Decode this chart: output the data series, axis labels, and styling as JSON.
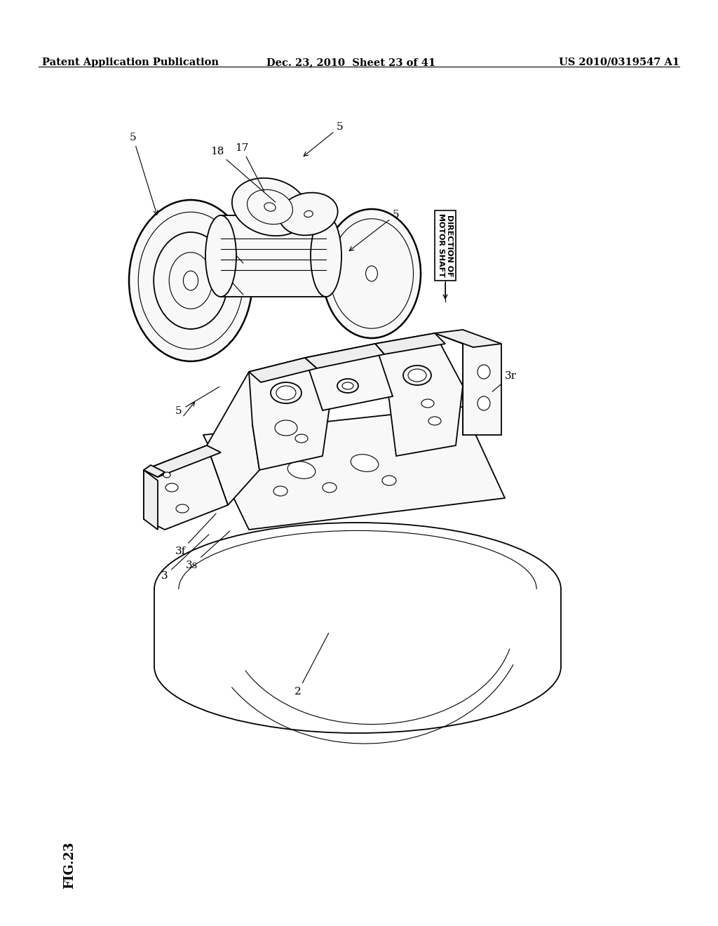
{
  "bg_color": "#ffffff",
  "header_left": "Patent Application Publication",
  "header_mid": "Dec. 23, 2010  Sheet 23 of 41",
  "header_right": "US 2010/0319547 A1",
  "fig_label": "FIG.23",
  "header_fontsize": 10.5,
  "fig_label_fontsize": 13,
  "page_width": 10.24,
  "page_height": 13.2,
  "dpi": 100
}
